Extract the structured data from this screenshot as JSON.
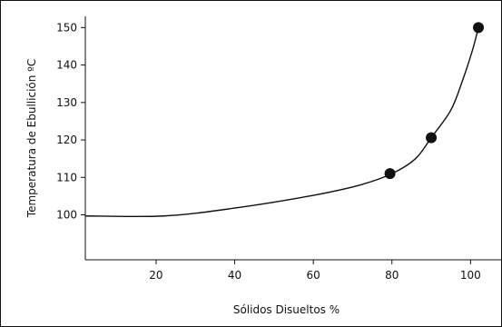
{
  "chart_data": {
    "type": "line",
    "title": "",
    "xlabel": "Sólidos Disueltos %",
    "ylabel": "Temperatura de Ebullición ºC",
    "xlim": [
      2,
      108
    ],
    "ylim": [
      88,
      153
    ],
    "x_ticks": [
      {
        "value": 20,
        "label": "20"
      },
      {
        "value": 40,
        "label": "40"
      },
      {
        "value": 60,
        "label": "60"
      },
      {
        "value": 80,
        "label": "80"
      },
      {
        "value": 100,
        "label": "100"
      }
    ],
    "y_ticks": [
      {
        "value": 100,
        "label": "100"
      },
      {
        "value": 110,
        "label": "110"
      },
      {
        "value": 120,
        "label": "120"
      },
      {
        "value": 130,
        "label": "130"
      },
      {
        "value": 140,
        "label": "140"
      },
      {
        "value": 150,
        "label": "150"
      }
    ],
    "grid": false,
    "legend": "none",
    "series": [
      {
        "curve": [
          {
            "x": 2,
            "y": 99.7
          },
          {
            "x": 22,
            "y": 99.7
          },
          {
            "x": 40,
            "y": 101.8
          },
          {
            "x": 60,
            "y": 105.2
          },
          {
            "x": 72,
            "y": 108.0
          },
          {
            "x": 80,
            "y": 111.0
          },
          {
            "x": 86,
            "y": 115.0
          },
          {
            "x": 90,
            "y": 120.6
          },
          {
            "x": 95,
            "y": 128.0
          },
          {
            "x": 98,
            "y": 136.0
          },
          {
            "x": 100.5,
            "y": 144.0
          },
          {
            "x": 102,
            "y": 150.0
          }
        ],
        "markers": [
          {
            "x": 79.5,
            "y": 111.0
          },
          {
            "x": 90,
            "y": 120.6
          },
          {
            "x": 102,
            "y": 150.0
          }
        ]
      }
    ],
    "colors": {
      "line": "#111111",
      "marker": "#111111",
      "frame": "#111111"
    }
  }
}
